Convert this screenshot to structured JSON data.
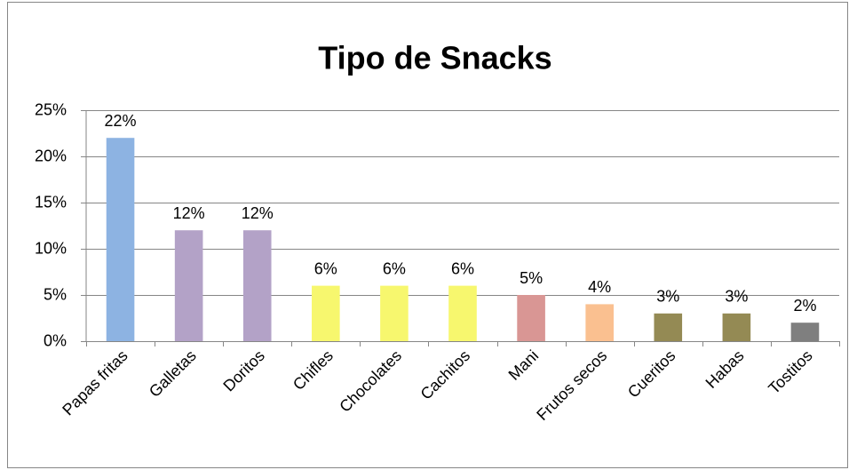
{
  "chart_data": {
    "type": "bar",
    "title": "Tipo de Snacks",
    "categories": [
      "Papas fritas",
      "Galletas",
      "Doritos",
      "Chifles",
      "Chocolates",
      "Cachitos",
      "Mani",
      "Frutos secos",
      "Cueritos",
      "Habas",
      "Tostitos"
    ],
    "values": [
      22,
      12,
      12,
      6,
      6,
      6,
      5,
      4,
      3,
      3,
      2
    ],
    "value_labels": [
      "22%",
      "12%",
      "12%",
      "6%",
      "6%",
      "6%",
      "5%",
      "4%",
      "3%",
      "3%",
      "2%"
    ],
    "colors": [
      "#8db3e2",
      "#b3a2c7",
      "#b3a2c7",
      "#f7f76e",
      "#f7f76e",
      "#f7f76e",
      "#d99694",
      "#fac090",
      "#948a54",
      "#948a54",
      "#7f7f7f"
    ],
    "ylim": [
      0,
      25
    ],
    "yticks": [
      {
        "value": 0,
        "label": "0%"
      },
      {
        "value": 5,
        "label": "5%"
      },
      {
        "value": 10,
        "label": "10%"
      },
      {
        "value": 15,
        "label": "15%"
      },
      {
        "value": 20,
        "label": "20%"
      },
      {
        "value": 25,
        "label": "25%"
      }
    ],
    "grid": true
  }
}
